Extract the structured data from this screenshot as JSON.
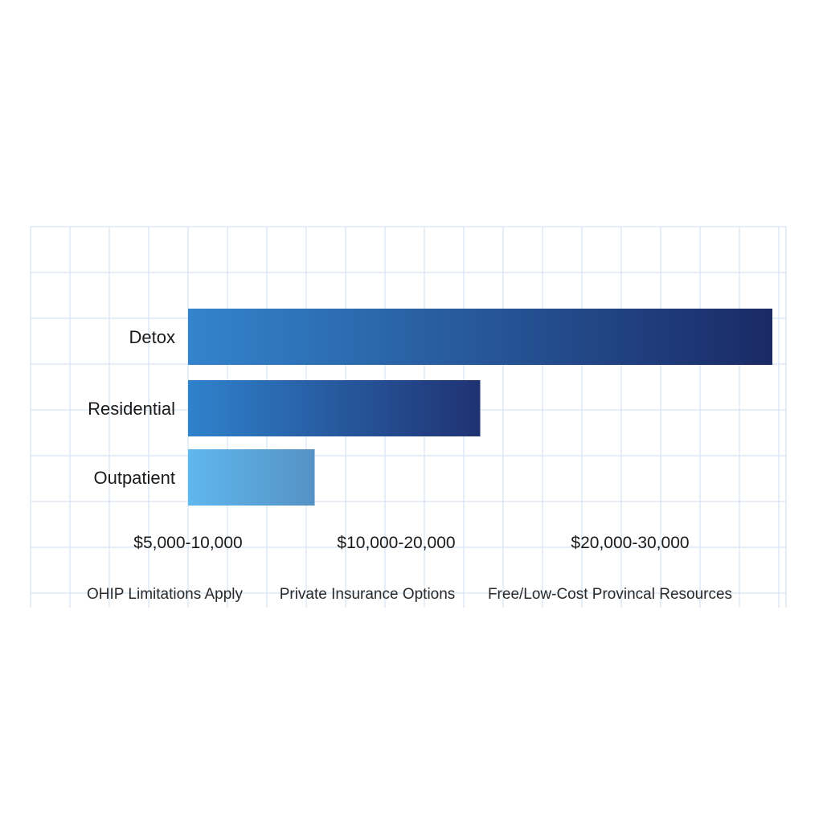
{
  "chart_data": {
    "type": "bar",
    "orientation": "horizontal",
    "categories": [
      "Detox",
      "Residential",
      "Outpatient"
    ],
    "values": [
      30000,
      15000,
      6500
    ],
    "x_tick_labels": [
      "$5,000-10,000",
      "$10,000-20,000",
      "$20,000-30,000"
    ],
    "annotations": [
      "OHIP Limitations Apply",
      "Private Insurance Options",
      "Free/Low-Cost Provincal Resources"
    ],
    "xlim": [
      0,
      30000
    ],
    "grid": true,
    "legend": "none",
    "colors": {
      "grid": "#d6e4f3",
      "detox_start": "#3384cc",
      "detox_end": "#1a2a66",
      "residential_start": "#2f82cc",
      "residential_end": "#1f3272",
      "outpatient_start": "#5fb8ee",
      "outpatient_end": "#5591c4"
    }
  }
}
